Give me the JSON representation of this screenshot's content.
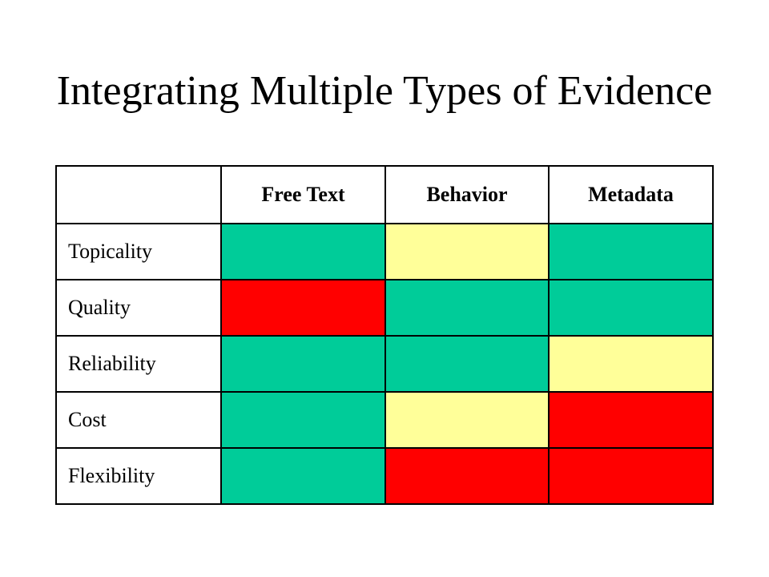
{
  "title": "Integrating Multiple Types of Evidence",
  "table": {
    "corner": "",
    "columns": [
      "Free Text",
      "Behavior",
      "Metadata"
    ],
    "rows": [
      {
        "label": "Topicality",
        "ratings": [
          "green",
          "yellow",
          "green"
        ]
      },
      {
        "label": "Quality",
        "ratings": [
          "red",
          "green",
          "green"
        ]
      },
      {
        "label": "Reliability",
        "ratings": [
          "green",
          "green",
          "yellow"
        ]
      },
      {
        "label": "Cost",
        "ratings": [
          "green",
          "yellow",
          "red"
        ]
      },
      {
        "label": "Flexibility",
        "ratings": [
          "green",
          "red",
          "red"
        ]
      }
    ]
  },
  "colors": {
    "green": "#00CC99",
    "yellow": "#FFFF99",
    "red": "#FF0000"
  }
}
